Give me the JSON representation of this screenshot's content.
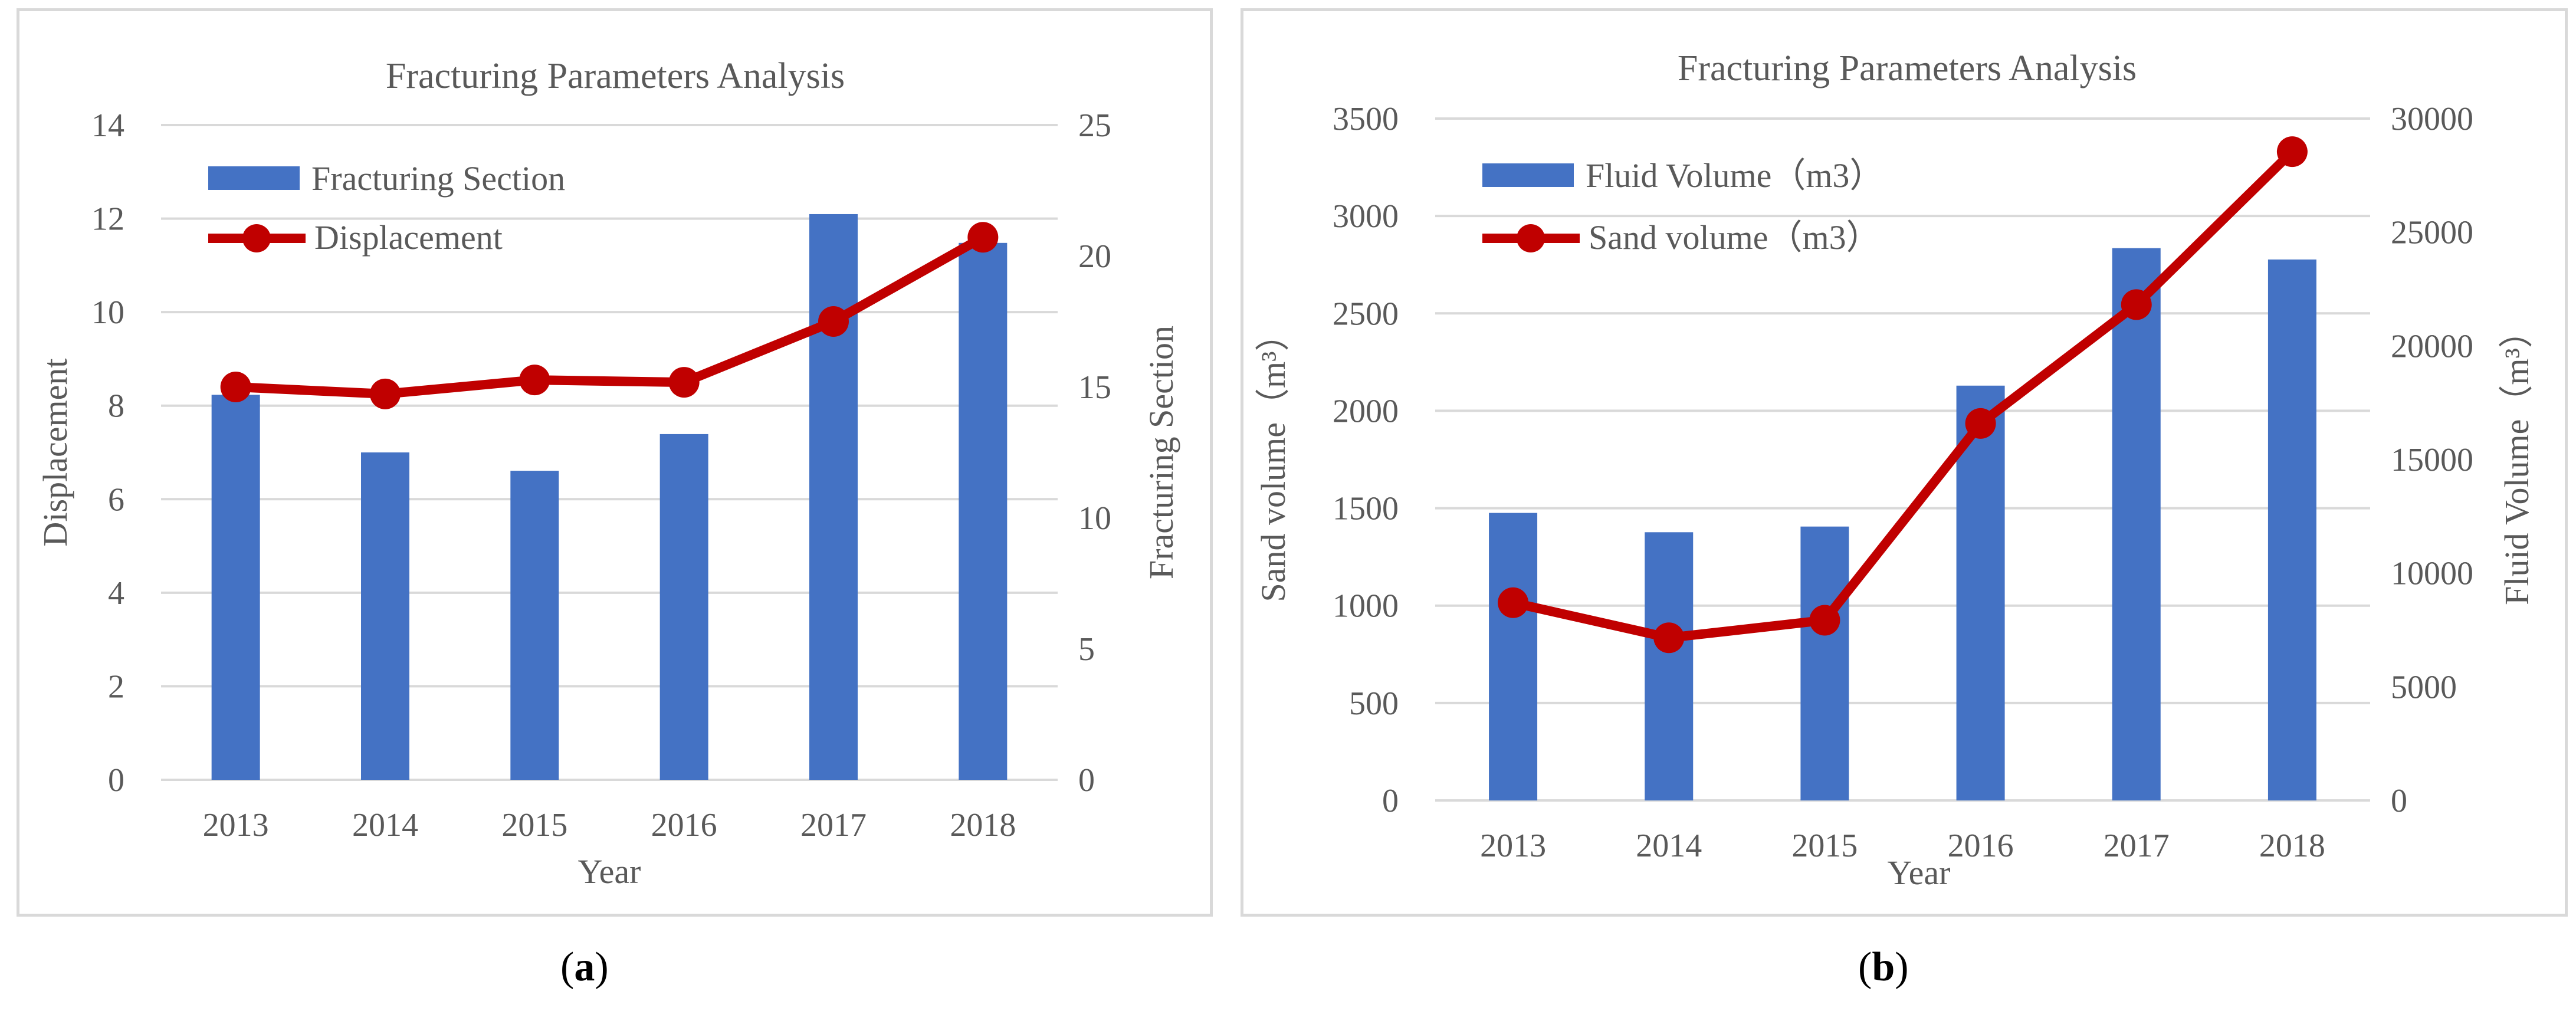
{
  "colors": {
    "bar": "#4472C4",
    "line": "#C00000",
    "grid": "#d9d9d9",
    "text": "#595959"
  },
  "captions": {
    "a": "a",
    "b": "b"
  },
  "chart_data": [
    {
      "type": "bar+line",
      "title": "Fracturing Parameters Analysis",
      "xlabel": "Year",
      "ylabel_left": "Displacement",
      "ylabel_right": "Fracturing Section",
      "categories": [
        "2013",
        "2014",
        "2015",
        "2016",
        "2017",
        "2018"
      ],
      "ylim_left": [
        0,
        14
      ],
      "yticks_left": [
        "0",
        "2",
        "4",
        "6",
        "8",
        "10",
        "12",
        "14"
      ],
      "ylim_right": [
        0,
        25
      ],
      "yticks_right": [
        "0",
        "5",
        "10",
        "15",
        "20",
        "25"
      ],
      "grid": true,
      "legend_position": "top-left",
      "series": [
        {
          "name": "Fracturing Section",
          "type": "bar",
          "axis": "right",
          "values": [
            14.7,
            12.5,
            11.8,
            13.2,
            21.6,
            20.5
          ]
        },
        {
          "name": "Displacement",
          "type": "line",
          "axis": "left",
          "values": [
            8.4,
            8.25,
            8.55,
            8.5,
            9.8,
            11.6
          ]
        }
      ]
    },
    {
      "type": "bar+line",
      "title": "Fracturing Parameters Analysis",
      "xlabel": "Year",
      "ylabel_left": "Sand volume（m³）",
      "ylabel_right": "Fluid Volume（m³）",
      "categories": [
        "2013",
        "2014",
        "2015",
        "2016",
        "2017",
        "2018"
      ],
      "ylim_left": [
        0,
        3500
      ],
      "yticks_left": [
        "0",
        "500",
        "1000",
        "1500",
        "2000",
        "2500",
        "3000",
        "3500"
      ],
      "ylim_right": [
        0,
        30000
      ],
      "yticks_right": [
        "0",
        "5000",
        "10000",
        "15000",
        "20000",
        "25000",
        "30000"
      ],
      "grid": true,
      "legend_position": "top-left",
      "series": [
        {
          "name": "Fluid Volume（m3）",
          "type": "bar",
          "axis": "right",
          "values": [
            12650,
            11800,
            12050,
            18250,
            24300,
            23800
          ]
        },
        {
          "name": "Sand volume（m3）",
          "type": "line",
          "axis": "left",
          "values": [
            1015,
            835,
            925,
            1935,
            2545,
            3330
          ]
        }
      ]
    }
  ]
}
